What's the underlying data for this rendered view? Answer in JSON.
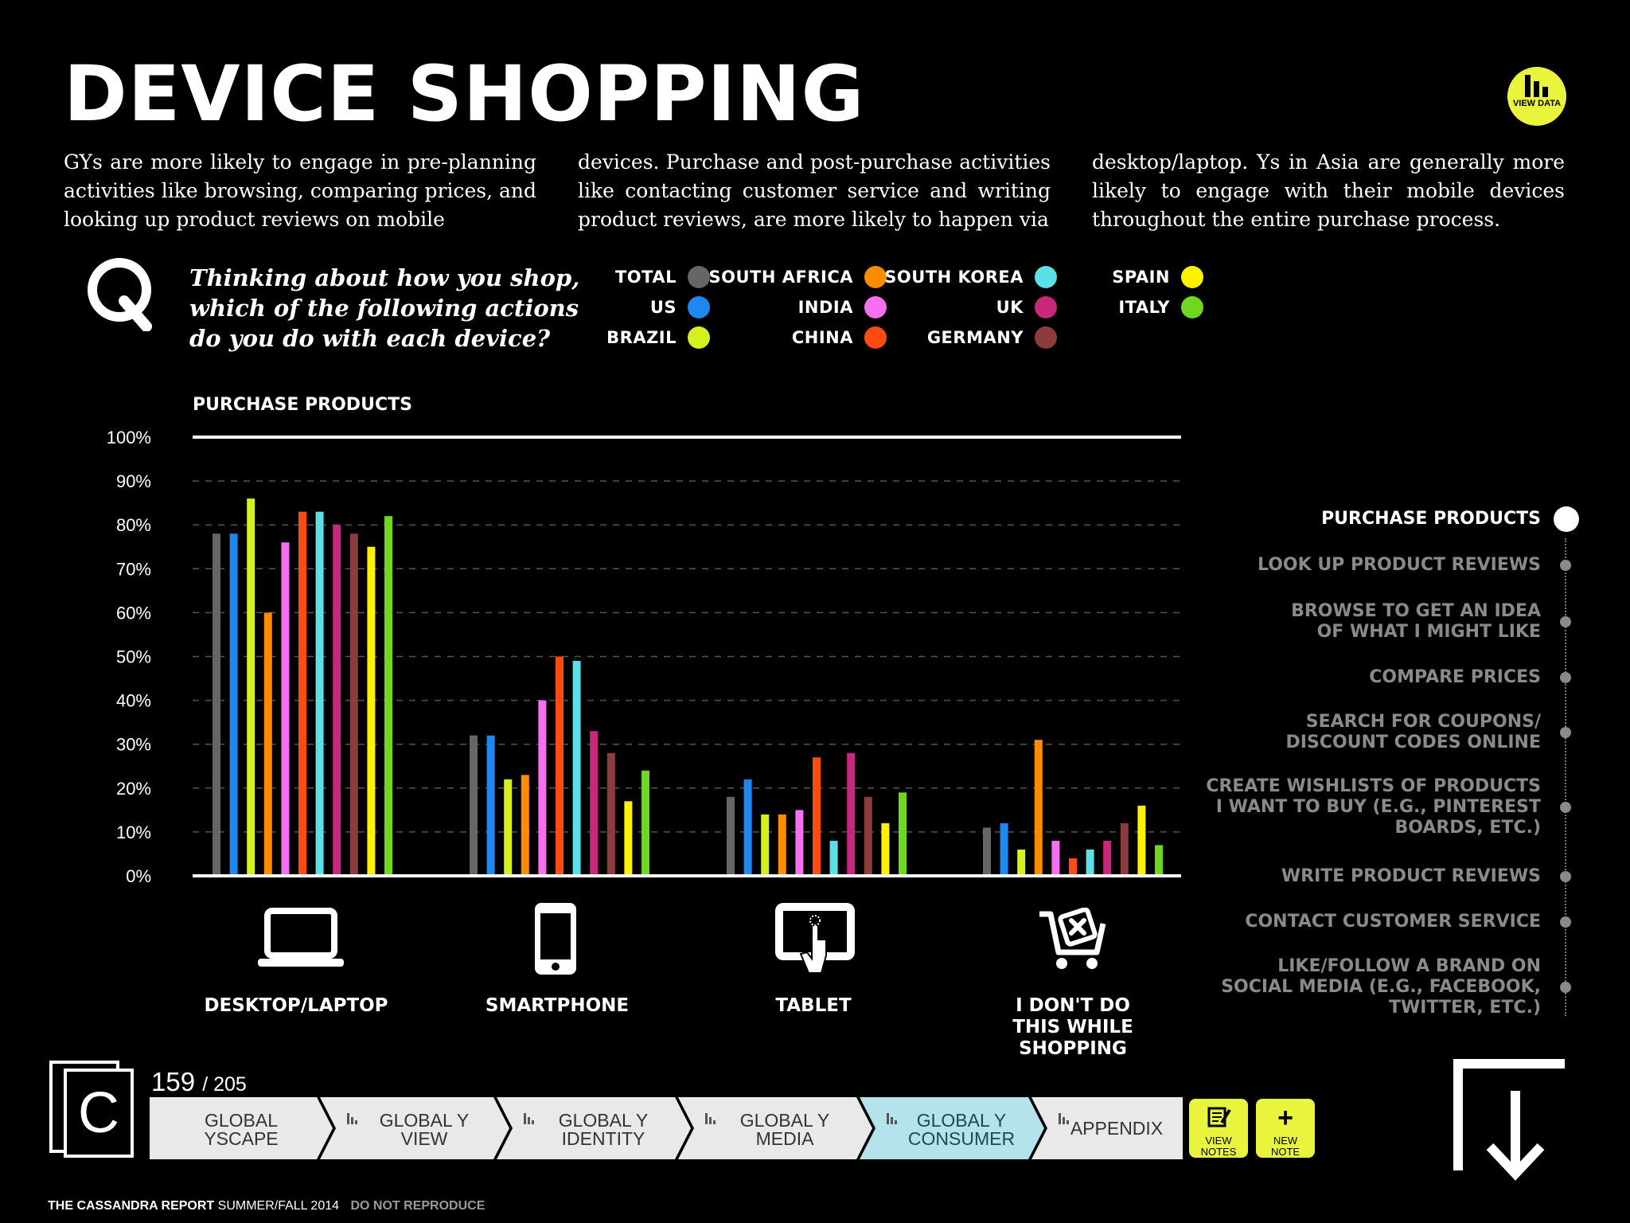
{
  "title": "DEVICE SHOPPING",
  "view_data_label": "VIEW DATA",
  "intro": [
    "GYs are more likely to engage in pre-planning activities like browsing, comparing prices, and looking up product reviews on mobile",
    "devices. Purchase and post-purchase activities like contacting customer service and writing product reviews, are more likely to happen via",
    "desktop/laptop. Ys in Asia are generally more likely to engage with their mobile devices throughout the entire purchase process."
  ],
  "question": "Thinking about how you shop, which of the following actions do you do with each device?",
  "legend": [
    {
      "label": "TOTAL",
      "color": "#666666"
    },
    {
      "label": "US",
      "color": "#1e88f0"
    },
    {
      "label": "BRAZIL",
      "color": "#d4f01e"
    },
    {
      "label": "SOUTH AFRICA",
      "color": "#ff8c00"
    },
    {
      "label": "INDIA",
      "color": "#f470f0"
    },
    {
      "label": "CHINA",
      "color": "#ff4a12"
    },
    {
      "label": "SOUTH KOREA",
      "color": "#5ae0e6"
    },
    {
      "label": "UK",
      "color": "#c8287c"
    },
    {
      "label": "GERMANY",
      "color": "#8c3c3c"
    },
    {
      "label": "SPAIN",
      "color": "#fff200"
    },
    {
      "label": "ITALY",
      "color": "#6ed820"
    }
  ],
  "chart_data": {
    "type": "bar",
    "title": "PURCHASE PRODUCTS",
    "categories": [
      "DESKTOP/LAPTOP",
      "SMARTPHONE",
      "TABLET",
      "I DON'T DO THIS WHILE SHOPPING"
    ],
    "ylim": [
      0,
      100
    ],
    "yticks": [
      "0%",
      "10%",
      "20%",
      "30%",
      "40%",
      "50%",
      "60%",
      "70%",
      "80%",
      "90%",
      "100%"
    ],
    "grid": true,
    "series": [
      {
        "name": "TOTAL",
        "values": [
          78,
          32,
          18,
          11
        ]
      },
      {
        "name": "US",
        "values": [
          78,
          32,
          22,
          12
        ]
      },
      {
        "name": "BRAZIL",
        "values": [
          86,
          22,
          14,
          6
        ]
      },
      {
        "name": "SOUTH AFRICA",
        "values": [
          60,
          23,
          14,
          31
        ]
      },
      {
        "name": "INDIA",
        "values": [
          76,
          40,
          15,
          8
        ]
      },
      {
        "name": "CHINA",
        "values": [
          83,
          50,
          27,
          4
        ]
      },
      {
        "name": "SOUTH KOREA",
        "values": [
          83,
          49,
          8,
          6
        ]
      },
      {
        "name": "UK",
        "values": [
          80,
          33,
          28,
          8
        ]
      },
      {
        "name": "GERMANY",
        "values": [
          78,
          28,
          18,
          12
        ]
      },
      {
        "name": "SPAIN",
        "values": [
          75,
          17,
          12,
          16
        ]
      },
      {
        "name": "ITALY",
        "values": [
          82,
          24,
          19,
          7
        ]
      }
    ]
  },
  "device_icons": [
    "laptop-icon",
    "smartphone-icon",
    "tablet-icon",
    "cart-x-icon"
  ],
  "nav": [
    "PURCHASE PRODUCTS",
    "LOOK UP PRODUCT REVIEWS",
    "BROWSE TO GET AN IDEA\nOF WHAT I MIGHT LIKE",
    "COMPARE PRICES",
    "SEARCH FOR COUPONS/\nDISCOUNT CODES ONLINE",
    "CREATE WISHLISTS OF PRODUCTS\nI WANT TO BUY (E.G., PINTEREST\nBOARDS, ETC.)",
    "WRITE PRODUCT REVIEWS",
    "CONTACT CUSTOMER SERVICE",
    "LIKE/FOLLOW A BRAND ON\nSOCIAL MEDIA (E.G., FACEBOOK,\nTWITTER, ETC.)"
  ],
  "nav_active": "PURCHASE PRODUCTS",
  "page": {
    "current": "159",
    "total": "/ 205"
  },
  "tabs": [
    {
      "label": "GLOBAL\nYSCAPE",
      "active": false
    },
    {
      "label": "GLOBAL Y\nVIEW",
      "active": false
    },
    {
      "label": "GLOBAL Y\nIDENTITY",
      "active": false
    },
    {
      "label": "GLOBAL Y\nMEDIA",
      "active": false
    },
    {
      "label": "GLOBAL Y\nCONSUMER",
      "active": true
    },
    {
      "label": "APPENDIX",
      "active": false
    }
  ],
  "buttons": {
    "view_notes": "VIEW\nNOTES",
    "new_note": "NEW\nNOTE"
  },
  "logo_letter": "C",
  "footer": {
    "report": "THE CASSANDRA REPORT",
    "season": "SUMMER/FALL 2014",
    "notice": "DO NOT REPRODUCE"
  }
}
